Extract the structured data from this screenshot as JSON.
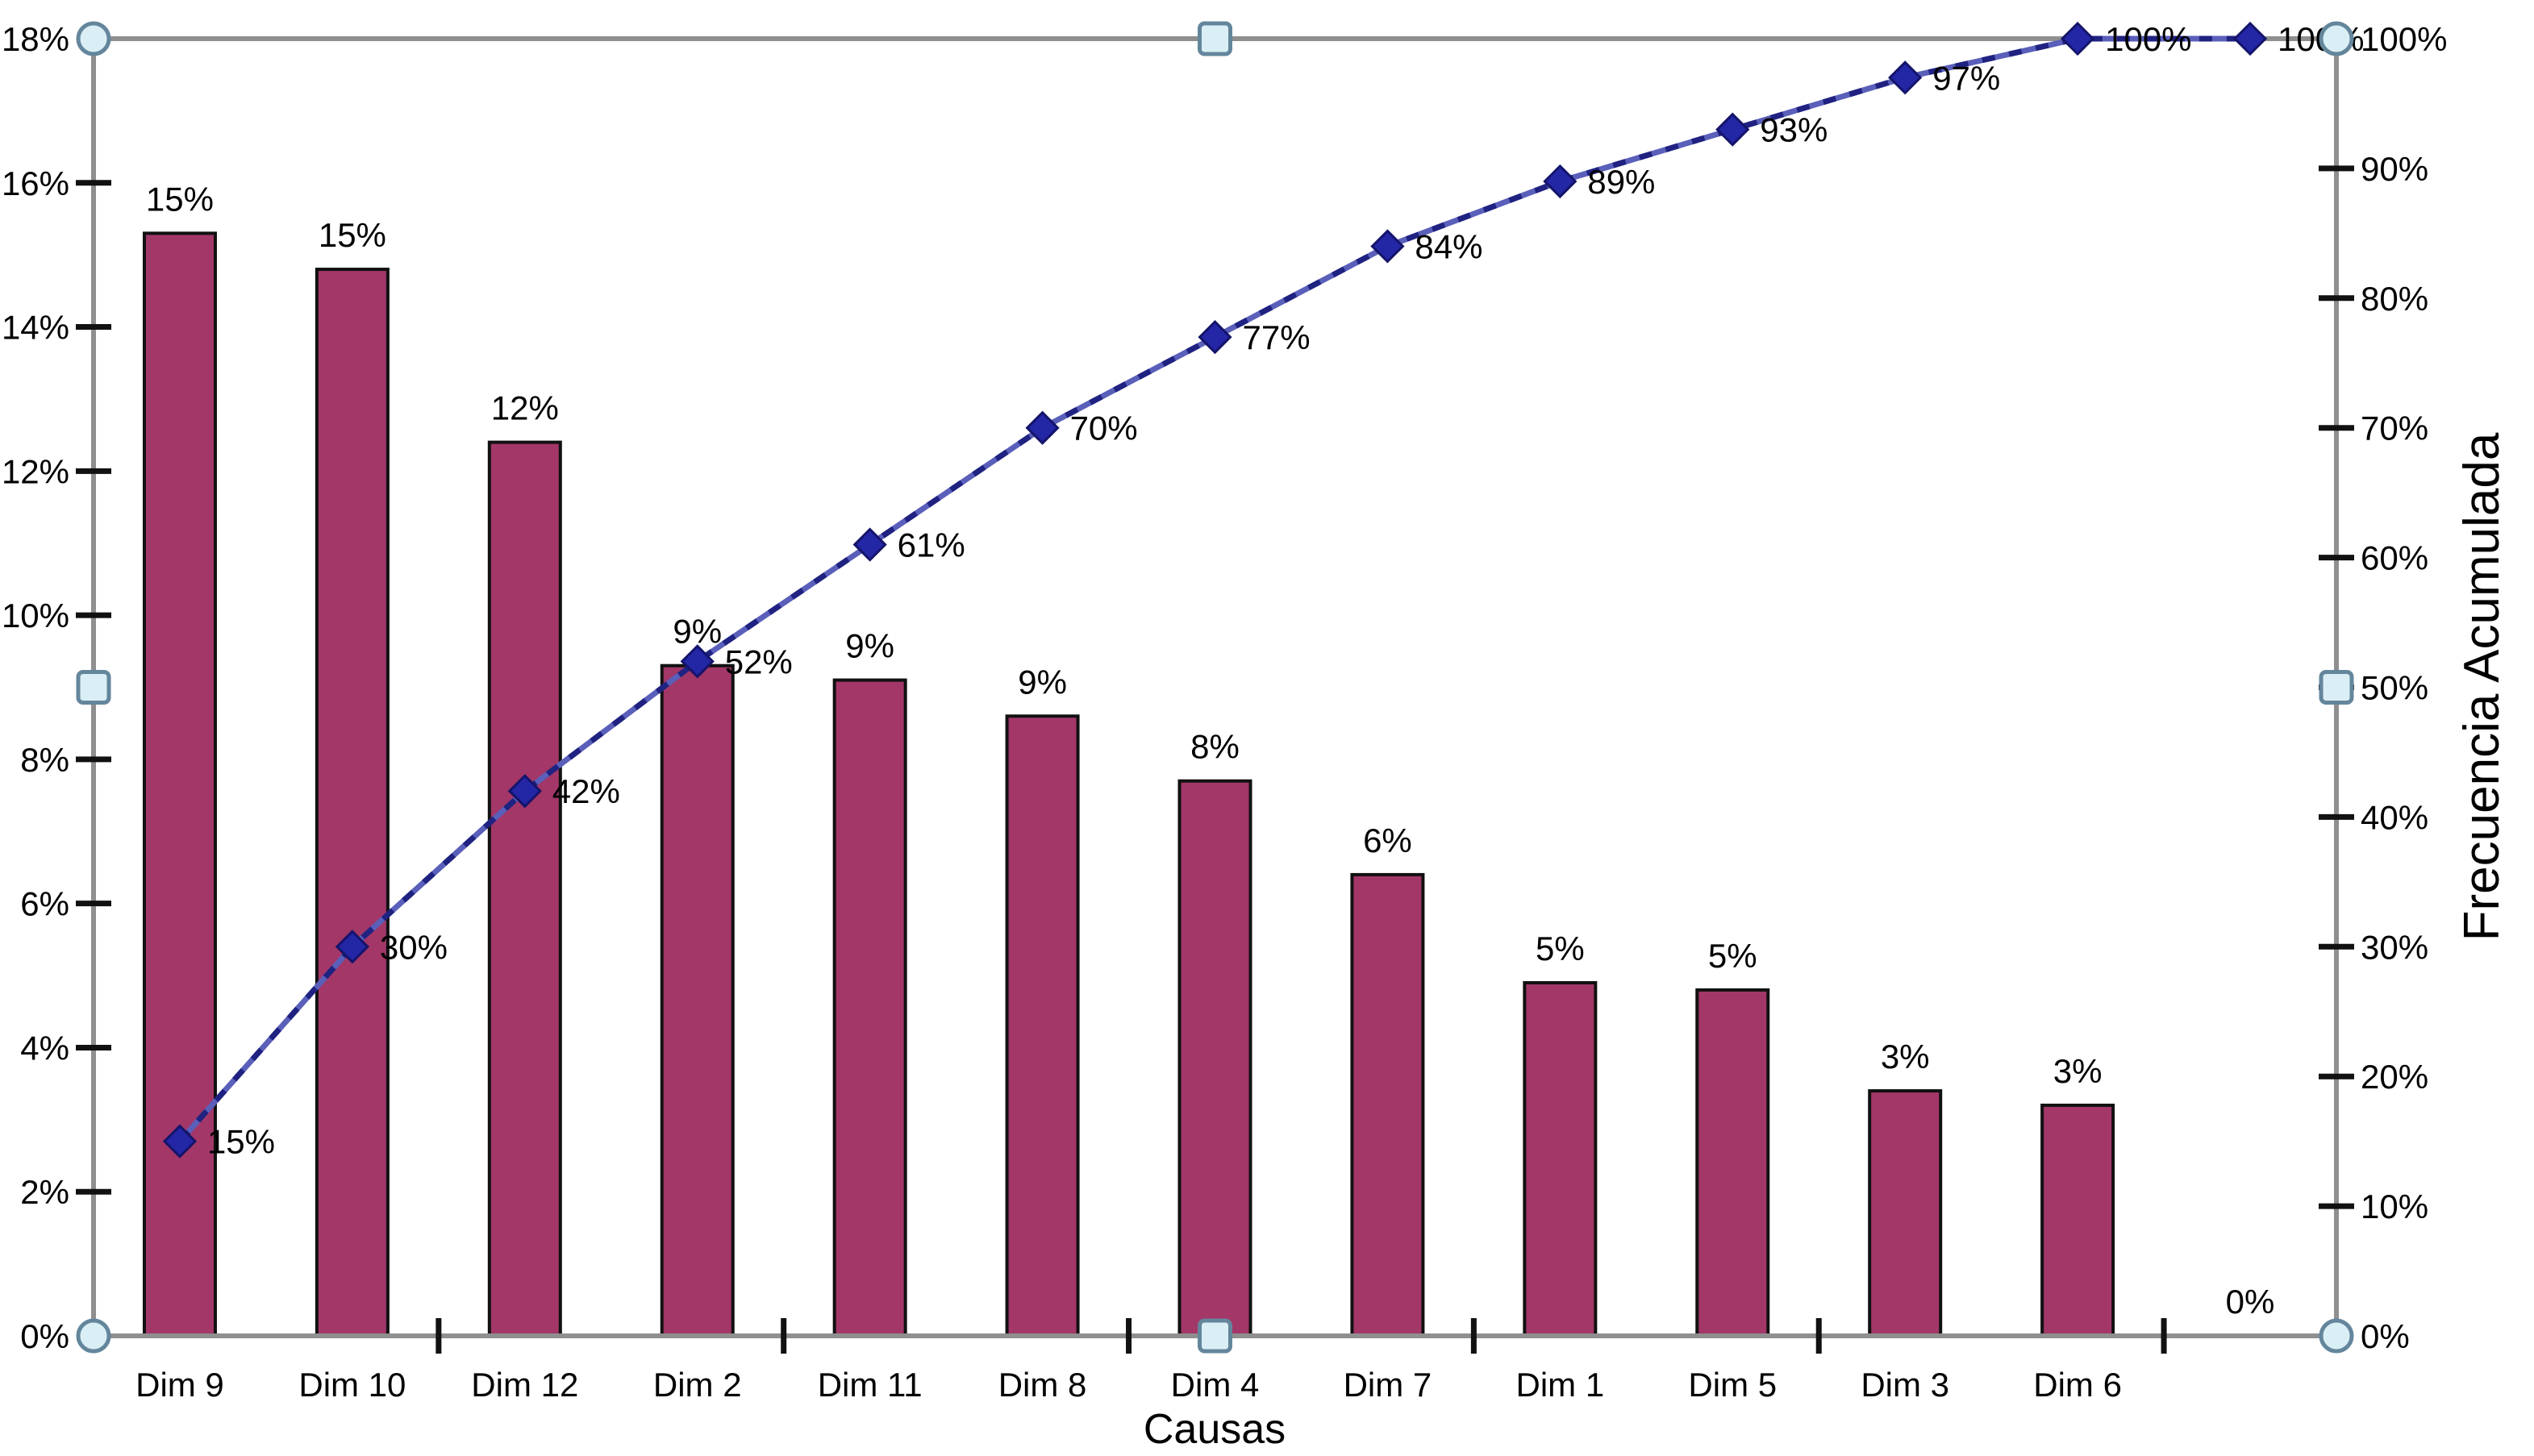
{
  "chart_data": {
    "type": "pareto-bar-line",
    "title": "",
    "xlabel": "Causas",
    "ylabel_left": "",
    "ylabel_right": "Frecuencia Acumulada",
    "categories": [
      "Dim 9",
      "Dim 10",
      "Dim 12",
      "Dim 2",
      "Dim 11",
      "Dim 8",
      "Dim 4",
      "Dim 7",
      "Dim 1",
      "Dim 5",
      "Dim 3",
      "Dim 6",
      ""
    ],
    "series": [
      {
        "name": "Frecuencia",
        "type": "bar",
        "values": [
          15.3,
          14.8,
          12.4,
          9.3,
          9.1,
          8.6,
          7.7,
          6.4,
          4.9,
          4.8,
          3.4,
          3.2,
          0
        ],
        "labels": [
          "15%",
          "15%",
          "12%",
          "9%",
          "9%",
          "9%",
          "8%",
          "6%",
          "5%",
          "5%",
          "3%",
          "3%",
          "0%"
        ]
      },
      {
        "name": "Frecuencia Acumulada",
        "type": "line",
        "values": [
          15,
          30,
          42,
          52,
          61,
          70,
          77,
          84,
          89,
          93,
          97,
          100,
          100
        ],
        "labels": [
          "15%",
          "30%",
          "42%",
          "52%",
          "61%",
          "70%",
          "77%",
          "84%",
          "89%",
          "93%",
          "97%",
          "100%",
          "100%"
        ]
      }
    ],
    "left_axis": {
      "min": 0,
      "max": 18,
      "step": 2,
      "tick_labels": [
        "0%",
        "2%",
        "4%",
        "6%",
        "8%",
        "10%",
        "12%",
        "14%",
        "16%",
        "18%"
      ]
    },
    "right_axis": {
      "min": 0,
      "max": 100,
      "step": 10,
      "tick_labels": [
        "0%",
        "10%",
        "20%",
        "30%",
        "40%",
        "50%",
        "60%",
        "70%",
        "80%",
        "90%",
        "100%"
      ]
    },
    "x_tick_every": 2,
    "grid": false,
    "legend": "none"
  },
  "colors": {
    "bar_fill": "#A23768",
    "bar_border": "#111111",
    "line_base": "#5A5FBA",
    "line_dash": "#1F2280",
    "marker_fill": "#2326A5",
    "marker_border": "#14146A",
    "axis_line": "#8F8F8F",
    "tick_mark": "#111111",
    "text": "#000000",
    "handle_fill": "#DAEFF5",
    "handle_border": "#64869C"
  },
  "selection": {
    "state": "chart-plot-area-selected",
    "corner_handles": 4,
    "edge_handles": 4
  }
}
